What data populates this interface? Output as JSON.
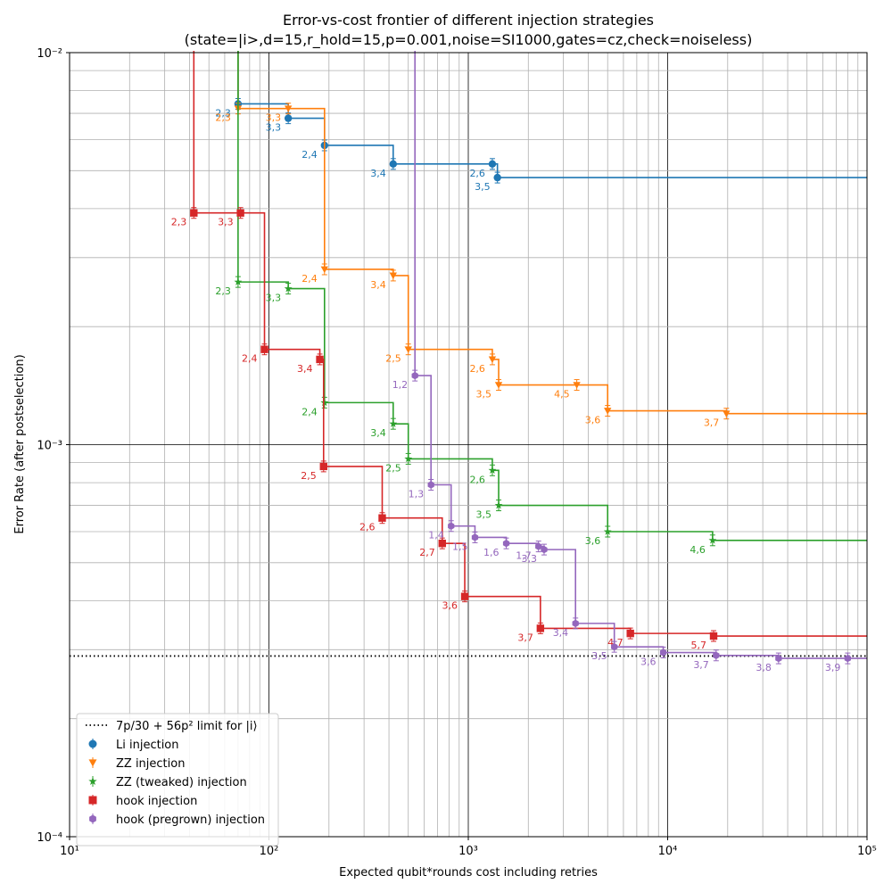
{
  "chart_data": {
    "type": "line",
    "title": "Error-vs-cost frontier of different injection strategies",
    "subtitle": "(state=|i>,d=15,r_hold=15,p=0.001,noise=SI1000,gates=cz,check=noiseless)",
    "xlabel": "Expected qubit*rounds cost including retries",
    "ylabel": "Error Rate (after postselection)",
    "xscale": "log",
    "yscale": "log",
    "xlim": [
      10,
      100000
    ],
    "ylim": [
      0.0001,
      0.01
    ],
    "grid": true,
    "legend_position": "lower-left",
    "x_tick_labels": [
      "10¹",
      "10²",
      "10³",
      "10⁴",
      "10⁵"
    ],
    "y_tick_labels": [
      "10⁻⁴",
      "10⁻³",
      "10⁻²"
    ],
    "reference_line": {
      "name": "7p/30 + 56p² limit for |i⟩",
      "y": 0.000289,
      "color": "#000000"
    },
    "series": [
      {
        "name": "Li injection",
        "color": "#1f77b4",
        "marker": "circle",
        "points": [
          {
            "label": "2,3",
            "x": 70,
            "y": 0.0074
          },
          {
            "label": "3,3",
            "x": 125,
            "y": 0.0068
          },
          {
            "label": "2,4",
            "x": 190,
            "y": 0.0058
          },
          {
            "label": "3,4",
            "x": 420,
            "y": 0.0052
          },
          {
            "label": "2,6",
            "x": 1320,
            "y": 0.0052
          },
          {
            "label": "3,5",
            "x": 1400,
            "y": 0.0048
          }
        ]
      },
      {
        "name": "ZZ injection",
        "color": "#ff7f0e",
        "marker": "triangle-down",
        "points": [
          {
            "label": "2,3",
            "x": 70,
            "y": 0.0072
          },
          {
            "label": "3,3",
            "x": 125,
            "y": 0.0072
          },
          {
            "label": "2,4",
            "x": 190,
            "y": 0.0028
          },
          {
            "label": "3,4",
            "x": 420,
            "y": 0.0027
          },
          {
            "label": "2,5",
            "x": 500,
            "y": 0.00175
          },
          {
            "label": "2,6",
            "x": 1320,
            "y": 0.00165
          },
          {
            "label": "3,5",
            "x": 1420,
            "y": 0.00142
          },
          {
            "label": "4,5",
            "x": 3500,
            "y": 0.00142
          },
          {
            "label": "3,6",
            "x": 5000,
            "y": 0.00122
          },
          {
            "label": "3,7",
            "x": 19700,
            "y": 0.0012
          }
        ]
      },
      {
        "name": "ZZ (tweaked) injection",
        "color": "#2ca02c",
        "marker": "star",
        "points": [
          {
            "label": "2,3",
            "x": 70,
            "y": 0.0026
          },
          {
            "label": "3,3",
            "x": 125,
            "y": 0.0025
          },
          {
            "label": "2,4",
            "x": 190,
            "y": 0.00128
          },
          {
            "label": "3,4",
            "x": 420,
            "y": 0.00113
          },
          {
            "label": "2,5",
            "x": 500,
            "y": 0.00092
          },
          {
            "label": "2,6",
            "x": 1320,
            "y": 0.00086
          },
          {
            "label": "3,5",
            "x": 1420,
            "y": 0.0007
          },
          {
            "label": "3,6",
            "x": 5000,
            "y": 0.0006
          },
          {
            "label": "4,6",
            "x": 16800,
            "y": 0.00057
          }
        ]
      },
      {
        "name": "hook injection",
        "color": "#d62728",
        "marker": "square",
        "points": [
          {
            "label": "2,3",
            "x": 42,
            "y": 0.0039
          },
          {
            "label": "3,3",
            "x": 72,
            "y": 0.0039
          },
          {
            "label": "2,4",
            "x": 95,
            "y": 0.00175
          },
          {
            "label": "3,4",
            "x": 180,
            "y": 0.00165
          },
          {
            "label": "2,5",
            "x": 188,
            "y": 0.00088
          },
          {
            "label": "2,6",
            "x": 370,
            "y": 0.00065
          },
          {
            "label": "2,7",
            "x": 740,
            "y": 0.00056
          },
          {
            "label": "3,6",
            "x": 960,
            "y": 0.00041
          },
          {
            "label": "3,7",
            "x": 2300,
            "y": 0.00034
          },
          {
            "label": "4,7",
            "x": 6500,
            "y": 0.00033
          },
          {
            "label": "5,7",
            "x": 17000,
            "y": 0.000325
          }
        ]
      },
      {
        "name": "hook (pregrown) injection",
        "color": "#9467bd",
        "marker": "hexagon",
        "points": [
          {
            "label": "1,2",
            "x": 540,
            "y": 0.0015
          },
          {
            "label": "1,3",
            "x": 650,
            "y": 0.00079
          },
          {
            "label": "1,4",
            "x": 820,
            "y": 0.00062
          },
          {
            "label": "1,5",
            "x": 1080,
            "y": 0.00058
          },
          {
            "label": "1,6",
            "x": 1550,
            "y": 0.00056
          },
          {
            "label": "1,7",
            "x": 2250,
            "y": 0.00055
          },
          {
            "label": "3,3",
            "x": 2400,
            "y": 0.00054
          },
          {
            "label": "3,4",
            "x": 3450,
            "y": 0.00035
          },
          {
            "label": "3,5",
            "x": 5400,
            "y": 0.000305
          },
          {
            "label": "3,6",
            "x": 9500,
            "y": 0.000295
          },
          {
            "label": "3,7",
            "x": 17500,
            "y": 0.00029
          },
          {
            "label": "3,8",
            "x": 36000,
            "y": 0.000285
          },
          {
            "label": "3,9",
            "x": 80000,
            "y": 0.000285
          }
        ]
      }
    ]
  }
}
